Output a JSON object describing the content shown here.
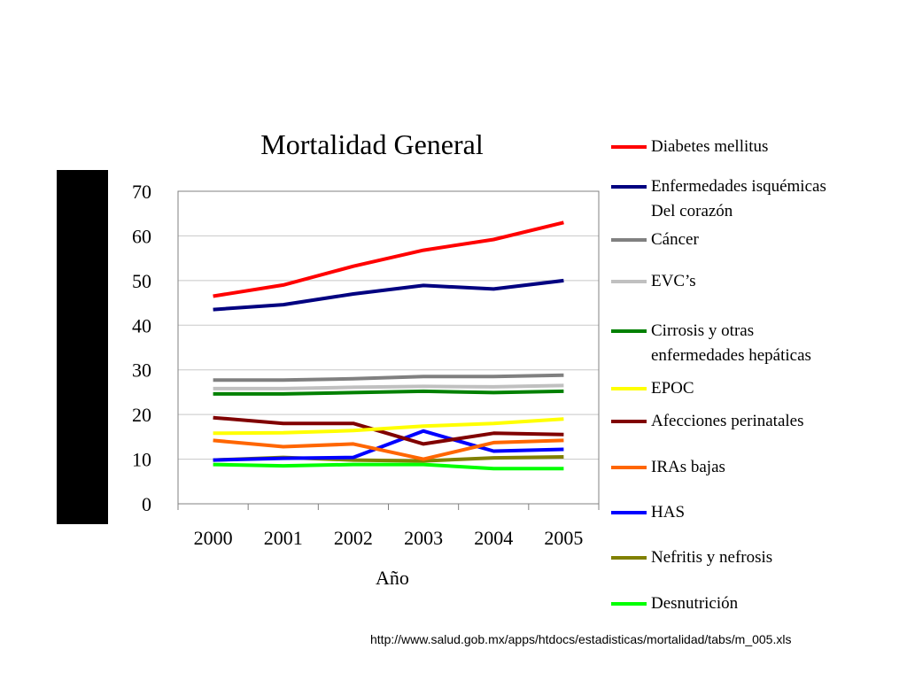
{
  "source_url": "http://www.salud.gob.mx/apps/htdocs/estadisticas/mortalidad/tabs/m_005.xls",
  "chart_data": {
    "type": "line",
    "title": "Mortalidad General",
    "xlabel": "Año",
    "ylabel": "",
    "categories": [
      "2000",
      "2001",
      "2002",
      "2003",
      "2004",
      "2005"
    ],
    "ylim": [
      0,
      70
    ],
    "yticks": [
      "0",
      "10",
      "20",
      "30",
      "40",
      "50",
      "60",
      "70"
    ],
    "grid": true,
    "legend_position": "right",
    "series": [
      {
        "name": "Diabetes mellitus",
        "color": "#ff0000",
        "values": [
          46.5,
          49,
          53.2,
          56.8,
          59.2,
          63
        ]
      },
      {
        "name": "Enfermedades isquémicas\nDel corazón",
        "color": "#000080",
        "values": [
          43.5,
          44.6,
          47,
          48.9,
          48.1,
          50
        ]
      },
      {
        "name": "Cáncer",
        "color": "#808080",
        "values": [
          27.7,
          27.7,
          28,
          28.5,
          28.5,
          28.8
        ]
      },
      {
        "name": "EVC’s",
        "color": "#c0c0c0",
        "values": [
          25.8,
          25.8,
          26.1,
          26.3,
          26.2,
          26.5
        ]
      },
      {
        "name": "Cirrosis y otras\nenfermedades hepáticas",
        "color": "#008000",
        "values": [
          24.6,
          24.6,
          24.9,
          25.2,
          24.9,
          25.2
        ]
      },
      {
        "name": "EPOC",
        "color": "#ffff00",
        "values": [
          15.8,
          15.9,
          16.4,
          17.4,
          18,
          19
        ]
      },
      {
        "name": "Afecciones perinatales",
        "color": "#800000",
        "values": [
          19.3,
          18,
          18,
          13.4,
          15.8,
          15.5
        ]
      },
      {
        "name": "IRAs bajas",
        "color": "#ff6600",
        "values": [
          14.2,
          12.8,
          13.4,
          10,
          13.7,
          14.2
        ]
      },
      {
        "name": "HAS",
        "color": "#0000ff",
        "values": [
          9.8,
          10.2,
          10.4,
          16.3,
          11.8,
          12.2
        ]
      },
      {
        "name": "Nefritis y nefrosis",
        "color": "#808000",
        "values": [
          9.8,
          10.4,
          9.8,
          9.6,
          10.3,
          10.5
        ]
      },
      {
        "name": "Desnutrición",
        "color": "#00ff00",
        "values": [
          8.8,
          8.5,
          8.8,
          8.8,
          7.9,
          7.9
        ]
      }
    ]
  }
}
